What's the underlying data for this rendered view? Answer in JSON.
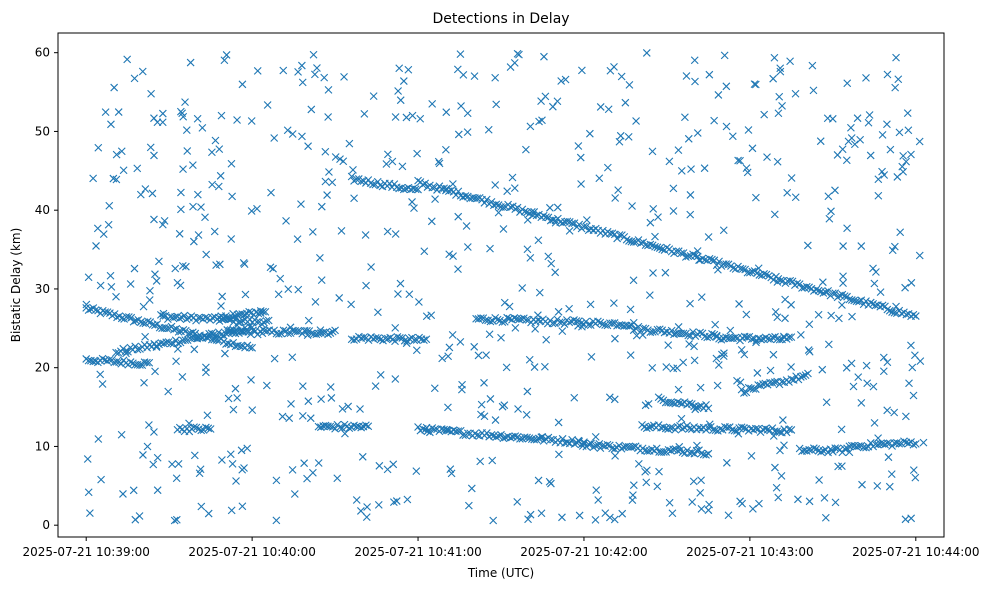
{
  "chart_data": {
    "type": "scatter",
    "title": "Detections in Delay",
    "xlabel": "Time (UTC)",
    "ylabel": "Bistatic Delay (km)",
    "x_unit": "minutes after 2025-07-21 10:39:00 UTC",
    "xlim": [
      -0.17,
      5.17
    ],
    "ylim": [
      -1.5,
      62.5
    ],
    "x_ticks": [
      {
        "value": 0,
        "label": "2025-07-21 10:39:00"
      },
      {
        "value": 1,
        "label": "2025-07-21 10:40:00"
      },
      {
        "value": 2,
        "label": "2025-07-21 10:41:00"
      },
      {
        "value": 3,
        "label": "2025-07-21 10:42:00"
      },
      {
        "value": 4,
        "label": "2025-07-21 10:43:00"
      },
      {
        "value": 5,
        "label": "2025-07-21 10:44:00"
      }
    ],
    "y_ticks": [
      0,
      10,
      20,
      30,
      40,
      50,
      60
    ],
    "marker": "x",
    "color": "#1f77b4",
    "grid": false,
    "tracks": [
      {
        "x_start": 0.0,
        "x_end": 1.0,
        "y_start": 27.5,
        "y_end": 22.5
      },
      {
        "x_start": 0.45,
        "x_end": 1.1,
        "y_start": 26.5,
        "y_end": 25.8
      },
      {
        "x_start": 0.8,
        "x_end": 1.08,
        "y_start": 26.2,
        "y_end": 27.2
      },
      {
        "x_start": 0.0,
        "x_end": 0.38,
        "y_start": 21.0,
        "y_end": 20.5
      },
      {
        "x_start": 0.18,
        "x_end": 1.0,
        "y_start": 22.0,
        "y_end": 25.0
      },
      {
        "x_start": 0.85,
        "x_end": 1.5,
        "y_start": 24.5,
        "y_end": 24.5
      },
      {
        "x_start": 1.6,
        "x_end": 2.05,
        "y_start": 23.8,
        "y_end": 23.5
      },
      {
        "x_start": 2.35,
        "x_end": 3.3,
        "y_start": 26.2,
        "y_end": 25.5
      },
      {
        "x_start": 3.3,
        "x_end": 3.8,
        "y_start": 25.0,
        "y_end": 24.0
      },
      {
        "x_start": 3.8,
        "x_end": 4.25,
        "y_start": 23.8,
        "y_end": 23.6
      },
      {
        "x_start": 1.6,
        "x_end": 2.0,
        "y_start": 44.0,
        "y_end": 42.5
      },
      {
        "x_start": 2.0,
        "x_end": 5.0,
        "y_start": 43.5,
        "y_end": 26.5
      },
      {
        "x_start": 2.0,
        "x_end": 3.0,
        "y_start": 12.2,
        "y_end": 10.5
      },
      {
        "x_start": 3.0,
        "x_end": 3.75,
        "y_start": 10.2,
        "y_end": 9.2
      },
      {
        "x_start": 3.35,
        "x_end": 4.25,
        "y_start": 12.5,
        "y_end": 12.0
      },
      {
        "x_start": 3.45,
        "x_end": 3.75,
        "y_start": 16.0,
        "y_end": 15.0
      },
      {
        "x_start": 3.95,
        "x_end": 4.35,
        "y_start": 17.0,
        "y_end": 19.0
      },
      {
        "x_start": 4.3,
        "x_end": 4.6,
        "y_start": 9.5,
        "y_end": 9.5
      },
      {
        "x_start": 4.6,
        "x_end": 5.0,
        "y_start": 10.0,
        "y_end": 10.5
      },
      {
        "x_start": 0.55,
        "x_end": 0.75,
        "y_start": 12.2,
        "y_end": 12.2
      },
      {
        "x_start": 1.4,
        "x_end": 1.7,
        "y_start": 12.5,
        "y_end": 12.5
      }
    ],
    "clutter": {
      "x_range": [
        0,
        5.05
      ],
      "y_range": [
        0.5,
        60
      ],
      "approx_count": 720
    }
  }
}
